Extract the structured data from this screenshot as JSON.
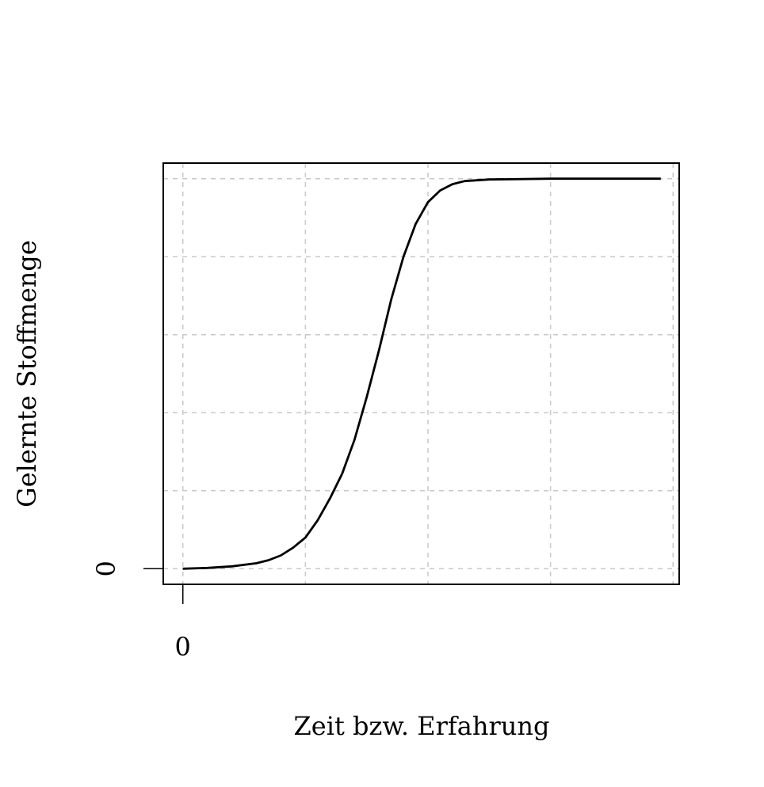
{
  "chart_data": {
    "type": "line",
    "title": "",
    "xlabel": "Zeit bzw. Erfahrung",
    "ylabel": "Gelernte Stoffmenge",
    "x_tick_labels": [
      {
        "value": 0,
        "label": "0"
      }
    ],
    "y_tick_labels": [
      {
        "value": 0,
        "label": "0"
      }
    ],
    "xlim": [
      -0.16,
      4.05
    ],
    "ylim": [
      -0.2,
      5.2
    ],
    "grid": true,
    "series": [
      {
        "values": [
          {
            "x": 0.0,
            "y": 0.0
          },
          {
            "x": 0.2,
            "y": 0.01
          },
          {
            "x": 0.4,
            "y": 0.03
          },
          {
            "x": 0.6,
            "y": 0.07
          },
          {
            "x": 0.7,
            "y": 0.11
          },
          {
            "x": 0.8,
            "y": 0.17
          },
          {
            "x": 0.9,
            "y": 0.27
          },
          {
            "x": 1.0,
            "y": 0.4
          },
          {
            "x": 1.1,
            "y": 0.62
          },
          {
            "x": 1.2,
            "y": 0.9
          },
          {
            "x": 1.3,
            "y": 1.22
          },
          {
            "x": 1.4,
            "y": 1.65
          },
          {
            "x": 1.5,
            "y": 2.2
          },
          {
            "x": 1.6,
            "y": 2.8
          },
          {
            "x": 1.7,
            "y": 3.45
          },
          {
            "x": 1.8,
            "y": 4.0
          },
          {
            "x": 1.9,
            "y": 4.42
          },
          {
            "x": 2.0,
            "y": 4.7
          },
          {
            "x": 2.1,
            "y": 4.85
          },
          {
            "x": 2.2,
            "y": 4.93
          },
          {
            "x": 2.3,
            "y": 4.97
          },
          {
            "x": 2.5,
            "y": 4.99
          },
          {
            "x": 3.0,
            "y": 5.0
          },
          {
            "x": 3.9,
            "y": 5.0
          }
        ]
      }
    ]
  }
}
